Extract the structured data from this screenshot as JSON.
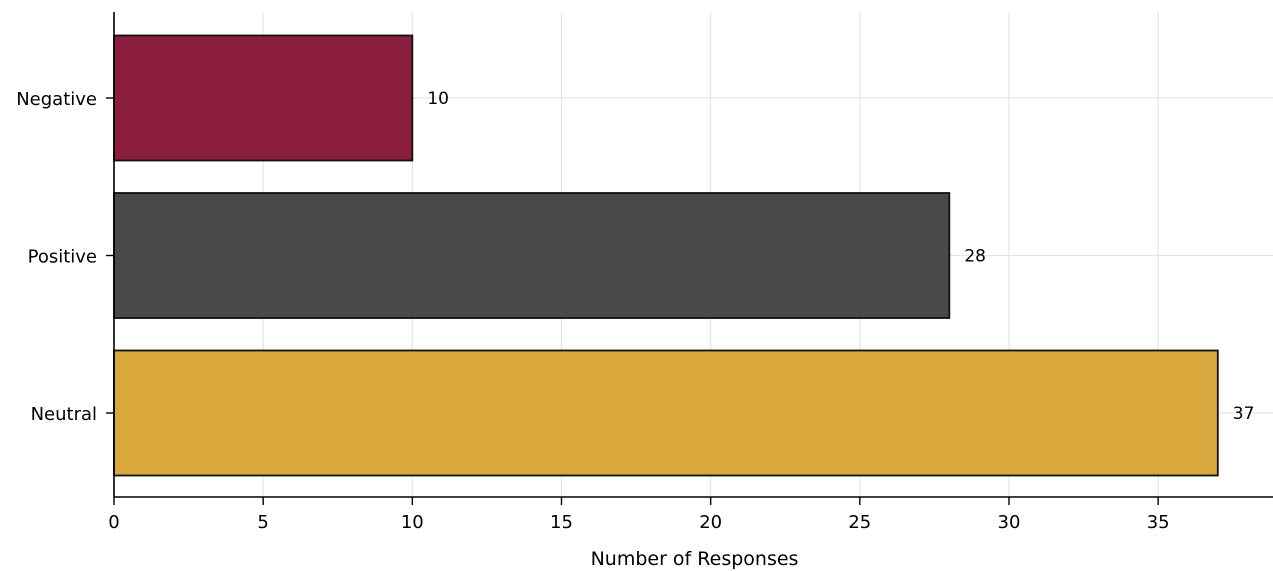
{
  "chart_data": {
    "type": "bar",
    "orientation": "horizontal",
    "title": "",
    "xlabel": "Number of Responses",
    "ylabel": "",
    "categories": [
      "Negative",
      "Positive",
      "Neutral"
    ],
    "values": [
      10,
      28,
      37
    ],
    "data_labels": [
      "10",
      "28",
      "37"
    ],
    "colors": [
      "#8b1e3f",
      "#4a4a4a",
      "#d8a83d"
    ],
    "xlim": [
      0,
      38.85
    ],
    "xticks": [
      0,
      5,
      10,
      15,
      20,
      25,
      30,
      35
    ],
    "xtick_labels": [
      "0",
      "5",
      "10",
      "15",
      "20",
      "25",
      "30",
      "35"
    ],
    "grid": true,
    "legend": false
  }
}
